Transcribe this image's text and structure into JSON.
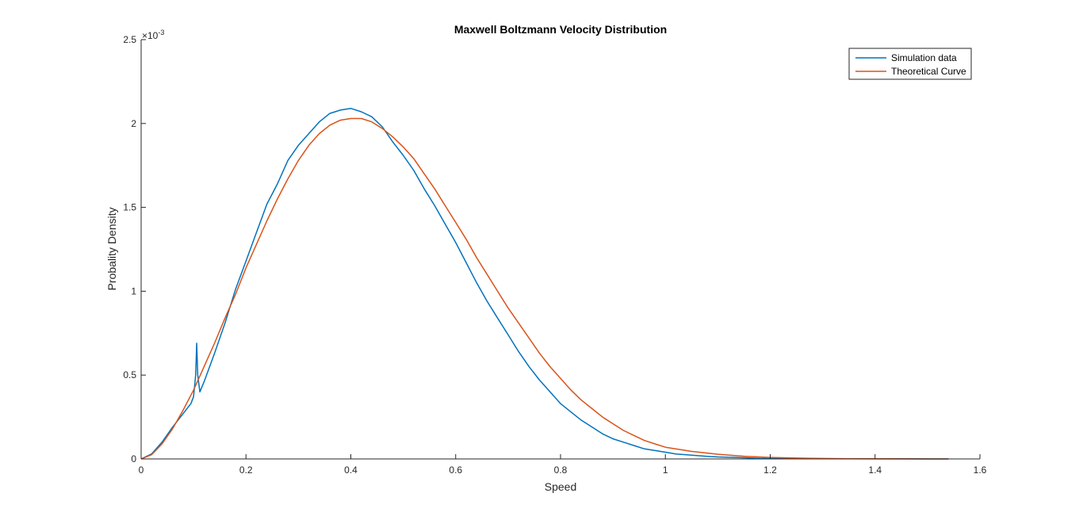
{
  "chart_data": {
    "type": "line",
    "title": "Maxwell Boltzmann Velocity Distribution",
    "xlabel": "Speed",
    "ylabel": "Probality Density",
    "xlim": [
      0,
      1.6
    ],
    "ylim": [
      0,
      0.0025
    ],
    "y_exponent_label": "×10",
    "y_exponent_power": "-3",
    "y_scale_factor": 0.001,
    "xticks": [
      0,
      0.2,
      0.4,
      0.6,
      0.8,
      1,
      1.2,
      1.4,
      1.6
    ],
    "xtick_labels": [
      "0",
      "0.2",
      "0.4",
      "0.6",
      "0.8",
      "1",
      "1.2",
      "1.4",
      "1.6"
    ],
    "yticks": [
      0,
      0.0005,
      0.001,
      0.0015,
      0.002,
      0.0025
    ],
    "ytick_labels": [
      "0",
      "0.5",
      "1",
      "1.5",
      "2",
      "2.5"
    ],
    "grid": false,
    "legend_position": "top-right",
    "series": [
      {
        "name": "Simulation data",
        "color": "#0072BD",
        "x": [
          0,
          0.02,
          0.04,
          0.06,
          0.08,
          0.095,
          0.1,
          0.104,
          0.106,
          0.108,
          0.112,
          0.12,
          0.14,
          0.16,
          0.18,
          0.2,
          0.22,
          0.24,
          0.26,
          0.28,
          0.3,
          0.32,
          0.34,
          0.36,
          0.38,
          0.4,
          0.42,
          0.44,
          0.46,
          0.48,
          0.5,
          0.52,
          0.54,
          0.56,
          0.58,
          0.6,
          0.62,
          0.64,
          0.66,
          0.68,
          0.7,
          0.72,
          0.74,
          0.76,
          0.78,
          0.8,
          0.82,
          0.84,
          0.86,
          0.88,
          0.9,
          0.92,
          0.94,
          0.96,
          0.98,
          1.0,
          1.02,
          1.04,
          1.06,
          1.08,
          1.1,
          1.12,
          1.14,
          1.16,
          1.18,
          1.2,
          1.25,
          1.3,
          1.35,
          1.4,
          1.45,
          1.5,
          1.54
        ],
        "values": [
          0,
          3e-05,
          0.0001,
          0.00019,
          0.00027,
          0.00033,
          0.00037,
          0.0005,
          0.00069,
          0.0005,
          0.0004,
          0.00046,
          0.00063,
          0.00081,
          0.00101,
          0.00118,
          0.00135,
          0.00152,
          0.00164,
          0.00178,
          0.00187,
          0.00194,
          0.00201,
          0.00206,
          0.00208,
          0.00209,
          0.00207,
          0.00204,
          0.00198,
          0.00189,
          0.00181,
          0.00172,
          0.00161,
          0.00151,
          0.0014,
          0.00129,
          0.00117,
          0.00105,
          0.00094,
          0.00084,
          0.00074,
          0.00064,
          0.00055,
          0.00047,
          0.0004,
          0.00033,
          0.00028,
          0.00023,
          0.00019,
          0.00015,
          0.00012,
          0.0001,
          8e-05,
          6e-05,
          5e-05,
          4e-05,
          3e-05,
          2.5e-05,
          2e-05,
          1.5e-05,
          1.2e-05,
          1e-05,
          8e-06,
          6e-06,
          4e-06,
          3e-06,
          2e-06,
          1e-06,
          8e-07,
          5e-07,
          3e-07,
          2e-07,
          1e-07
        ]
      },
      {
        "name": "Theoretical Curve",
        "color": "#D95319",
        "x": [
          0,
          0.02,
          0.04,
          0.06,
          0.08,
          0.1,
          0.12,
          0.14,
          0.16,
          0.18,
          0.2,
          0.22,
          0.24,
          0.26,
          0.28,
          0.3,
          0.32,
          0.34,
          0.36,
          0.38,
          0.4,
          0.42,
          0.44,
          0.46,
          0.48,
          0.5,
          0.52,
          0.54,
          0.56,
          0.58,
          0.6,
          0.62,
          0.64,
          0.66,
          0.68,
          0.7,
          0.72,
          0.74,
          0.76,
          0.78,
          0.8,
          0.82,
          0.84,
          0.86,
          0.88,
          0.9,
          0.92,
          0.94,
          0.96,
          0.98,
          1.0,
          1.05,
          1.1,
          1.15,
          1.2,
          1.25,
          1.3,
          1.35,
          1.4,
          1.45,
          1.5,
          1.54
        ],
        "values": [
          0,
          2.5e-05,
          9e-05,
          0.00018,
          0.00029,
          0.00041,
          0.00055,
          0.00069,
          0.00084,
          0.00098,
          0.00114,
          0.00128,
          0.00142,
          0.00155,
          0.00167,
          0.00178,
          0.00187,
          0.00194,
          0.00199,
          0.00202,
          0.00203,
          0.00203,
          0.00201,
          0.00197,
          0.00192,
          0.00186,
          0.00179,
          0.0017,
          0.00161,
          0.00151,
          0.00141,
          0.00131,
          0.0012,
          0.0011,
          0.001,
          0.0009,
          0.00081,
          0.00072,
          0.00063,
          0.00055,
          0.00048,
          0.00041,
          0.00035,
          0.0003,
          0.00025,
          0.00021,
          0.00017,
          0.00014,
          0.00011,
          9e-05,
          7e-05,
          4.5e-05,
          2.8e-05,
          1.6e-05,
          9e-06,
          5e-06,
          3e-06,
          1.5e-06,
          8e-07,
          4e-07,
          2e-07,
          1e-07
        ]
      }
    ]
  }
}
